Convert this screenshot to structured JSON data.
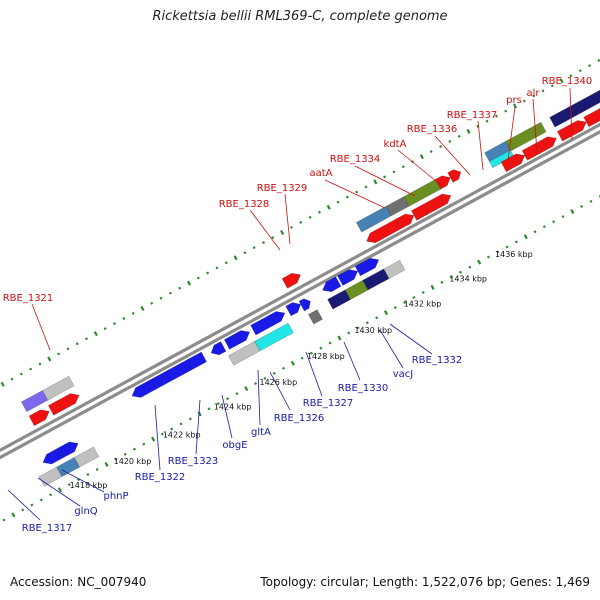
{
  "title": "Rickettsia bellii RML369-C, complete genome",
  "footer": {
    "accession": "Accession: NC_007940",
    "summary": "Topology: circular; Length: 1,522,076 bp; Genes: 1,469"
  },
  "colors": {
    "background": "#ffffff",
    "backbone": "#8c8c8c",
    "tick_dot": "#2a8a2a",
    "top_label": "#cc1010",
    "bottom_label": "#1a1aa8",
    "red": "#ee1111",
    "blue": "#1a1ae6",
    "navy": "#1a1a72",
    "olive": "#6b8e23",
    "lightgray": "#c0c0c0",
    "darkgray": "#707070",
    "steelblue": "#4682b4",
    "cyan": "#22e6e6",
    "purple": "#7b68ee"
  },
  "scale_labels": [
    "1418 kbp",
    "1420 kbp",
    "1422 kbp",
    "1424 kbp",
    "1426 kbp",
    "1428 kbp",
    "1430 kbp",
    "1432 kbp",
    "1434 kbp",
    "1436 kbp"
  ],
  "genes_top": [
    "RBE_1321",
    "RBE_1328",
    "RBE_1329",
    "aatA",
    "RBE_1334",
    "kdtA",
    "RBE_1336",
    "RBE_1337",
    "prs",
    "alr",
    "RBE_1340"
  ],
  "genes_bottom": [
    "RBE_1317",
    "glnQ",
    "phnP",
    "RBE_1322",
    "RBE_1323",
    "obgE",
    "gltA",
    "RBE_1326",
    "RBE_1327",
    "RBE_1330",
    "vacJ",
    "RBE_1332"
  ]
}
